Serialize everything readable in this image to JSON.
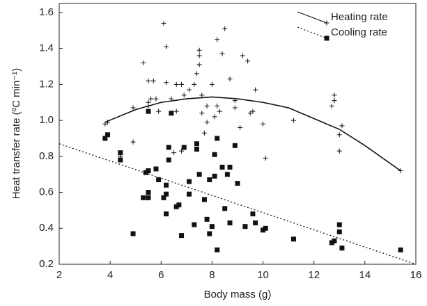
{
  "chart_data": {
    "type": "scatter",
    "x_label": "Body mass (g)",
    "y_label": "Heat transfer rate (ºC min⁻¹)",
    "xlim": [
      2,
      16
    ],
    "xticks": [
      2,
      4,
      6,
      8,
      10,
      12,
      14,
      16
    ],
    "ylim": [
      0.2,
      1.65
    ],
    "yticks": [
      0.2,
      0.4,
      0.6,
      0.8,
      {
        "value": 1,
        "label": "1.0"
      },
      1.2,
      1.4,
      1.6
    ],
    "legend": "upper right",
    "series": [
      {
        "name": "Heating rate",
        "color": "#111111",
        "marker": "plus",
        "line_style": "solid",
        "x": [
          3.8,
          3.9,
          4.4,
          4.9,
          4.9,
          5.3,
          5.5,
          5.5,
          5.6,
          5.5,
          5.8,
          5.9,
          6.1,
          6.2,
          6.2,
          6.4,
          6.6,
          6.6,
          6.8,
          6.9,
          7.1,
          7.3,
          7.4,
          7.5,
          7.5,
          7.5,
          7.6,
          7.6,
          6.5,
          6.8,
          7.7,
          7.8,
          7.8,
          8.0,
          8.1,
          8.2,
          8.2,
          8.3,
          8.4,
          8.5,
          8.7,
          8.9,
          8.9,
          9.1,
          9.2,
          9.4,
          9.5,
          9.6,
          9.7,
          10.0,
          10.1,
          11.2,
          12.7,
          12.8,
          12.8,
          13.0,
          13.0,
          13.1,
          15.4,
          5.7
        ],
        "values": [
          0.98,
          0.99,
          0.8,
          0.88,
          1.07,
          1.32,
          1.22,
          1.1,
          1.12,
          1.08,
          1.12,
          1.05,
          1.54,
          1.41,
          1.21,
          1.12,
          1.05,
          1.2,
          1.2,
          1.14,
          1.17,
          1.2,
          1.26,
          1.39,
          1.36,
          1.31,
          1.14,
          1.04,
          0.82,
          0.83,
          0.93,
          1.08,
          0.99,
          1.2,
          1.02,
          1.45,
          1.08,
          1.05,
          1.37,
          1.51,
          1.23,
          1.11,
          1.07,
          0.96,
          1.36,
          1.33,
          1.04,
          1.05,
          1.17,
          0.98,
          0.79,
          1.0,
          1.08,
          1.14,
          1.11,
          0.92,
          0.83,
          0.97,
          0.72,
          1.22
        ],
        "fit": {
          "x": [
            3.8,
            5,
            6,
            7,
            8,
            9,
            10,
            11,
            12,
            13,
            14,
            15.4
          ],
          "values": [
            0.99,
            1.06,
            1.1,
            1.12,
            1.13,
            1.12,
            1.1,
            1.07,
            1.01,
            0.95,
            0.86,
            0.72
          ]
        }
      },
      {
        "name": "Cooling rate",
        "color": "#111111",
        "marker": "square",
        "line_style": "dotted",
        "x": [
          3.8,
          3.9,
          4.4,
          4.4,
          4.9,
          5.3,
          5.4,
          5.5,
          5.5,
          5.5,
          5.5,
          5.8,
          5.9,
          6.1,
          6.2,
          6.2,
          6.2,
          6.3,
          6.3,
          6.4,
          6.6,
          6.7,
          6.8,
          6.9,
          7.1,
          7.1,
          7.3,
          7.4,
          7.4,
          7.5,
          7.7,
          7.8,
          7.9,
          7.9,
          8.0,
          8.1,
          8.1,
          8.2,
          8.2,
          8.4,
          8.5,
          8.6,
          8.7,
          8.7,
          9.0,
          9.3,
          9.6,
          9.7,
          10.0,
          10.1,
          11.2,
          12.7,
          12.8,
          13.0,
          13.0,
          13.1,
          15.4,
          8.9
        ],
        "values": [
          0.9,
          0.92,
          0.82,
          0.78,
          0.37,
          0.57,
          0.71,
          0.72,
          0.6,
          0.57,
          1.05,
          0.73,
          0.67,
          0.57,
          0.64,
          0.59,
          0.48,
          0.85,
          0.78,
          1.04,
          0.52,
          0.53,
          0.36,
          0.85,
          0.59,
          0.66,
          0.42,
          0.87,
          0.84,
          0.7,
          0.56,
          0.45,
          0.67,
          0.37,
          0.41,
          0.69,
          0.81,
          0.9,
          0.28,
          0.74,
          0.51,
          0.7,
          0.74,
          0.43,
          0.65,
          0.41,
          0.48,
          0.43,
          0.39,
          0.4,
          0.34,
          0.32,
          0.33,
          0.42,
          0.38,
          0.29,
          0.28,
          0.86
        ],
        "fit": {
          "x": [
            2,
            16
          ],
          "values": [
            0.87,
            0.2
          ]
        }
      }
    ]
  }
}
